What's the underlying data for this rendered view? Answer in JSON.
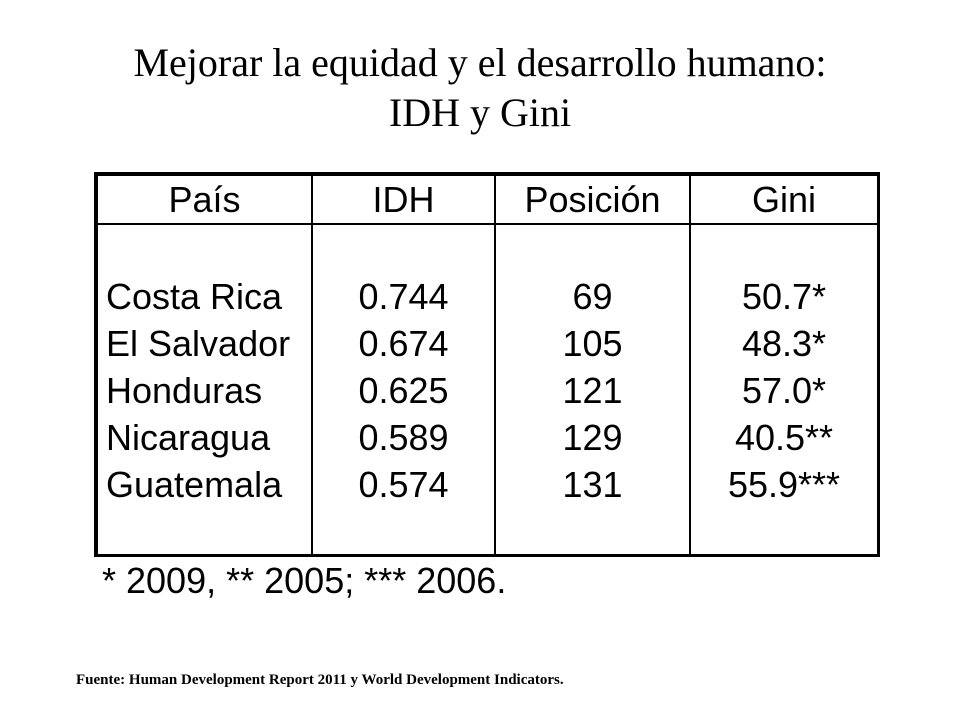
{
  "title": {
    "line1": "Mejorar la equidad y el desarrollo humano:",
    "line2": "IDH y Gini"
  },
  "table": {
    "headers": [
      "País",
      "IDH",
      "Posición",
      "Gini"
    ],
    "rows": [
      {
        "pais": "Costa Rica",
        "idh": "0.744",
        "posicion": "69",
        "gini": "50.7*"
      },
      {
        "pais": "El Salvador",
        "idh": "0.674",
        "posicion": "105",
        "gini": "48.3*"
      },
      {
        "pais": "Honduras",
        "idh": "0.625",
        "posicion": "121",
        "gini": "57.0*"
      },
      {
        "pais": "Nicaragua",
        "idh": "0.589",
        "posicion": "129",
        "gini": "40.5**"
      },
      {
        "pais": "Guatemala",
        "idh": "0.574",
        "posicion": "131",
        "gini": "55.9***"
      }
    ]
  },
  "footnote": "* 2009, ** 2005; *** 2006.",
  "source": "Fuente: Human Development Report 2011 y World Development Indicators."
}
